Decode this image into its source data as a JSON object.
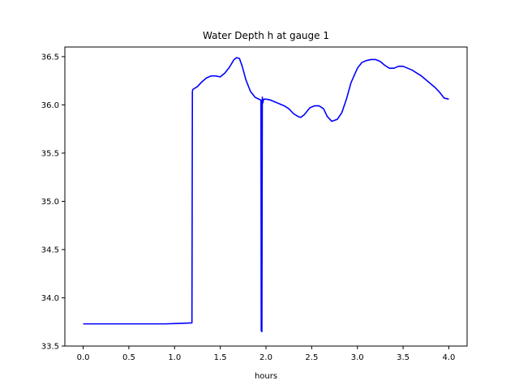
{
  "chart_data": {
    "type": "line",
    "title": "Water Depth h at gauge 1",
    "xlabel": "hours",
    "ylabel": "",
    "xlim": [
      -0.2,
      4.2
    ],
    "ylim": [
      33.5,
      36.6
    ],
    "xticks": [
      0.0,
      0.5,
      1.0,
      1.5,
      2.0,
      2.5,
      3.0,
      3.5,
      4.0
    ],
    "xtick_labels": [
      "0.0",
      "0.5",
      "1.0",
      "1.5",
      "2.0",
      "2.5",
      "3.0",
      "3.5",
      "4.0"
    ],
    "yticks": [
      33.5,
      34.0,
      34.5,
      35.0,
      35.5,
      36.0,
      36.5
    ],
    "ytick_labels": [
      "33.5",
      "34.0",
      "34.5",
      "35.0",
      "35.5",
      "36.0",
      "36.5"
    ],
    "grid": false,
    "series": [
      {
        "color": "#0000ff",
        "x": [
          0.0,
          0.5,
          0.9,
          1.05,
          1.19,
          1.195,
          1.2,
          1.25,
          1.3,
          1.35,
          1.4,
          1.45,
          1.5,
          1.55,
          1.6,
          1.65,
          1.68,
          1.71,
          1.74,
          1.78,
          1.83,
          1.88,
          1.92,
          1.945,
          1.948,
          1.955,
          1.96,
          1.965,
          1.972,
          1.98,
          2.0,
          2.05,
          2.1,
          2.15,
          2.2,
          2.25,
          2.3,
          2.35,
          2.38,
          2.42,
          2.48,
          2.53,
          2.58,
          2.63,
          2.67,
          2.72,
          2.78,
          2.83,
          2.88,
          2.93,
          3.0,
          3.05,
          3.1,
          3.15,
          3.2,
          3.25,
          3.3,
          3.35,
          3.4,
          3.45,
          3.5,
          3.55,
          3.6,
          3.65,
          3.7,
          3.75,
          3.8,
          3.85,
          3.9,
          3.95,
          4.0
        ],
        "y": [
          33.73,
          33.73,
          33.73,
          33.735,
          33.74,
          36.14,
          36.16,
          36.19,
          36.24,
          36.28,
          36.3,
          36.3,
          36.29,
          36.33,
          36.39,
          36.47,
          36.49,
          36.48,
          36.4,
          36.26,
          36.14,
          36.08,
          36.06,
          36.05,
          33.66,
          33.65,
          36.08,
          36.02,
          36.05,
          36.06,
          36.06,
          36.05,
          36.03,
          36.01,
          35.99,
          35.96,
          35.91,
          35.88,
          35.87,
          35.9,
          35.97,
          35.99,
          35.99,
          35.96,
          35.88,
          35.83,
          35.85,
          35.92,
          36.06,
          36.23,
          36.38,
          36.44,
          36.46,
          36.47,
          36.47,
          36.45,
          36.41,
          36.38,
          36.38,
          36.4,
          36.4,
          36.38,
          36.36,
          36.33,
          36.3,
          36.26,
          36.22,
          36.18,
          36.13,
          36.07,
          36.06
        ]
      }
    ]
  }
}
